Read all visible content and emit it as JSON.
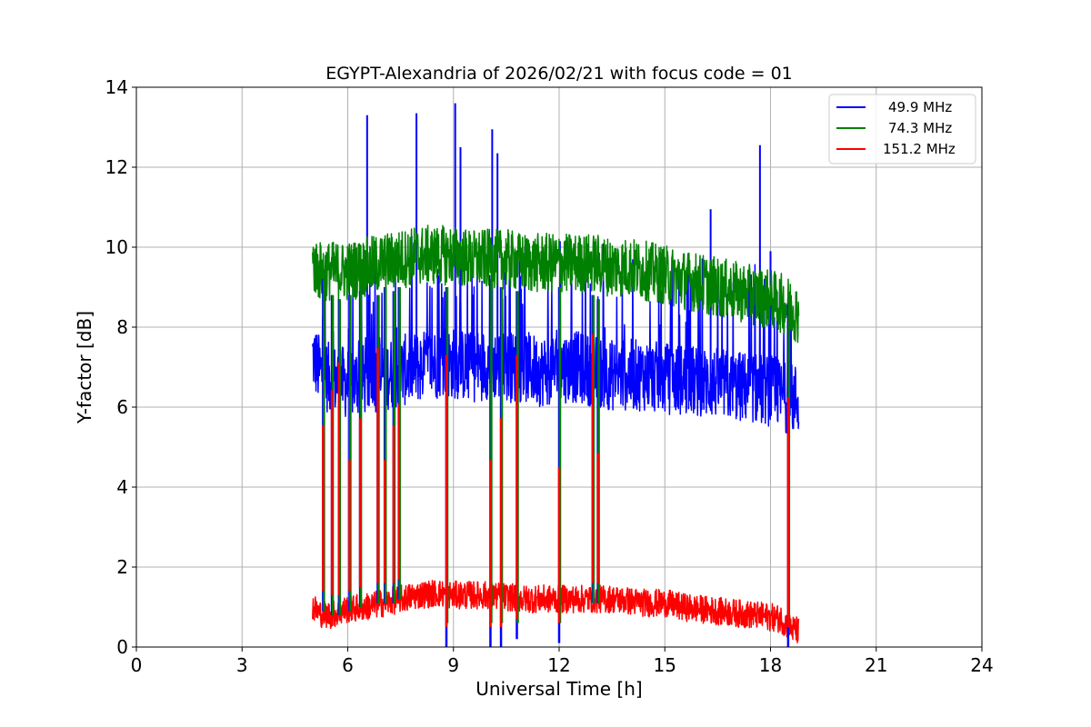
{
  "chart_data": {
    "type": "line",
    "title": "EGYPT-Alexandria of 2026/02/21 with focus code = 01",
    "xlabel": "Universal Time [h]",
    "ylabel": "Y-factor [dB]",
    "xlim": [
      0,
      24
    ],
    "ylim": [
      0,
      14
    ],
    "xticks": [
      "0",
      "3",
      "6",
      "9",
      "12",
      "15",
      "18",
      "21",
      "24"
    ],
    "yticks": [
      "0",
      "2",
      "4",
      "6",
      "8",
      "10",
      "12",
      "14"
    ],
    "grid": true,
    "legend_position": "top-right",
    "series": [
      {
        "name": "49.9 MHz",
        "color": "#0000ff",
        "x": [
          5.0,
          5.2,
          5.5,
          6.0,
          6.5,
          7.0,
          7.5,
          8.0,
          8.5,
          9.0,
          9.5,
          10.0,
          10.5,
          11.0,
          11.5,
          12.0,
          12.5,
          13.0,
          13.5,
          14.0,
          14.5,
          15.0,
          15.5,
          16.0,
          16.5,
          17.0,
          17.5,
          18.0,
          18.3,
          18.6,
          18.8
        ],
        "values": [
          7.3,
          6.9,
          6.7,
          6.6,
          6.7,
          6.8,
          6.9,
          7.0,
          7.1,
          7.1,
          7.0,
          7.1,
          7.0,
          7.0,
          6.9,
          7.0,
          7.0,
          6.9,
          6.8,
          6.8,
          6.8,
          6.7,
          6.7,
          6.6,
          6.6,
          6.5,
          6.5,
          6.4,
          6.3,
          6.2,
          6.2
        ],
        "spikes": [
          {
            "x": 6.55,
            "y": 13.3
          },
          {
            "x": 7.95,
            "y": 13.35
          },
          {
            "x": 9.05,
            "y": 13.6
          },
          {
            "x": 9.2,
            "y": 12.5
          },
          {
            "x": 10.1,
            "y": 12.95
          },
          {
            "x": 10.25,
            "y": 12.35
          },
          {
            "x": 16.3,
            "y": 10.95
          },
          {
            "x": 17.7,
            "y": 12.55
          },
          {
            "x": 18.0,
            "y": 9.9
          }
        ]
      },
      {
        "name": "74.3 MHz",
        "color": "#008000",
        "x": [
          5.0,
          5.2,
          5.5,
          6.0,
          6.5,
          7.0,
          7.5,
          8.0,
          8.5,
          9.0,
          9.5,
          10.0,
          10.5,
          11.0,
          11.5,
          12.0,
          12.5,
          13.0,
          13.5,
          14.0,
          14.5,
          15.0,
          15.5,
          16.0,
          16.5,
          17.0,
          17.5,
          18.0,
          18.3,
          18.6,
          18.8
        ],
        "values": [
          9.6,
          9.4,
          9.4,
          9.4,
          9.5,
          9.6,
          9.7,
          9.8,
          9.8,
          9.8,
          9.7,
          9.7,
          9.7,
          9.6,
          9.6,
          9.6,
          9.6,
          9.6,
          9.5,
          9.5,
          9.4,
          9.3,
          9.2,
          9.1,
          9.0,
          8.9,
          8.8,
          8.7,
          8.6,
          8.5,
          8.3
        ]
      },
      {
        "name": "151.2 MHz",
        "color": "#ff0000",
        "x": [
          5.0,
          5.2,
          5.5,
          6.0,
          6.5,
          7.0,
          7.5,
          8.0,
          8.5,
          9.0,
          9.5,
          10.0,
          10.5,
          11.0,
          11.5,
          12.0,
          12.5,
          13.0,
          13.5,
          14.0,
          14.5,
          15.0,
          15.5,
          16.0,
          16.5,
          17.0,
          17.5,
          18.0,
          18.3,
          18.6,
          18.8
        ],
        "values": [
          1.0,
          0.85,
          0.8,
          0.95,
          1.0,
          1.1,
          1.2,
          1.3,
          1.35,
          1.3,
          1.3,
          1.3,
          1.25,
          1.2,
          1.2,
          1.2,
          1.2,
          1.2,
          1.2,
          1.15,
          1.1,
          1.1,
          1.0,
          0.95,
          0.9,
          0.85,
          0.8,
          0.75,
          0.7,
          0.45,
          0.4
        ]
      }
    ],
    "dropouts": [
      {
        "x": 5.3,
        "low": 0.9,
        "high": 9.2
      },
      {
        "x": 5.55,
        "low": 0.8,
        "high": 8.8
      },
      {
        "x": 5.75,
        "low": 0.8,
        "high": 8.7
      },
      {
        "x": 6.05,
        "low": 0.9,
        "high": 8.8
      },
      {
        "x": 6.35,
        "low": 1.0,
        "high": 8.9
      },
      {
        "x": 6.85,
        "low": 1.1,
        "high": 8.8
      },
      {
        "x": 7.05,
        "low": 1.1,
        "high": 9.0
      },
      {
        "x": 7.3,
        "low": 1.1,
        "high": 8.9
      },
      {
        "x": 7.45,
        "low": 1.2,
        "high": 9.0
      },
      {
        "x": 8.8,
        "low": 0.0,
        "high": 9.0
      },
      {
        "x": 10.05,
        "low": 0.0,
        "high": 9.2
      },
      {
        "x": 10.35,
        "low": 0.0,
        "high": 9.0
      },
      {
        "x": 10.8,
        "low": 0.2,
        "high": 8.9
      },
      {
        "x": 12.0,
        "low": 0.1,
        "high": 9.0
      },
      {
        "x": 12.95,
        "low": 1.1,
        "high": 8.8
      },
      {
        "x": 13.1,
        "low": 1.1,
        "high": 8.7
      },
      {
        "x": 18.5,
        "low": 0.0,
        "high": 8.6
      }
    ]
  }
}
